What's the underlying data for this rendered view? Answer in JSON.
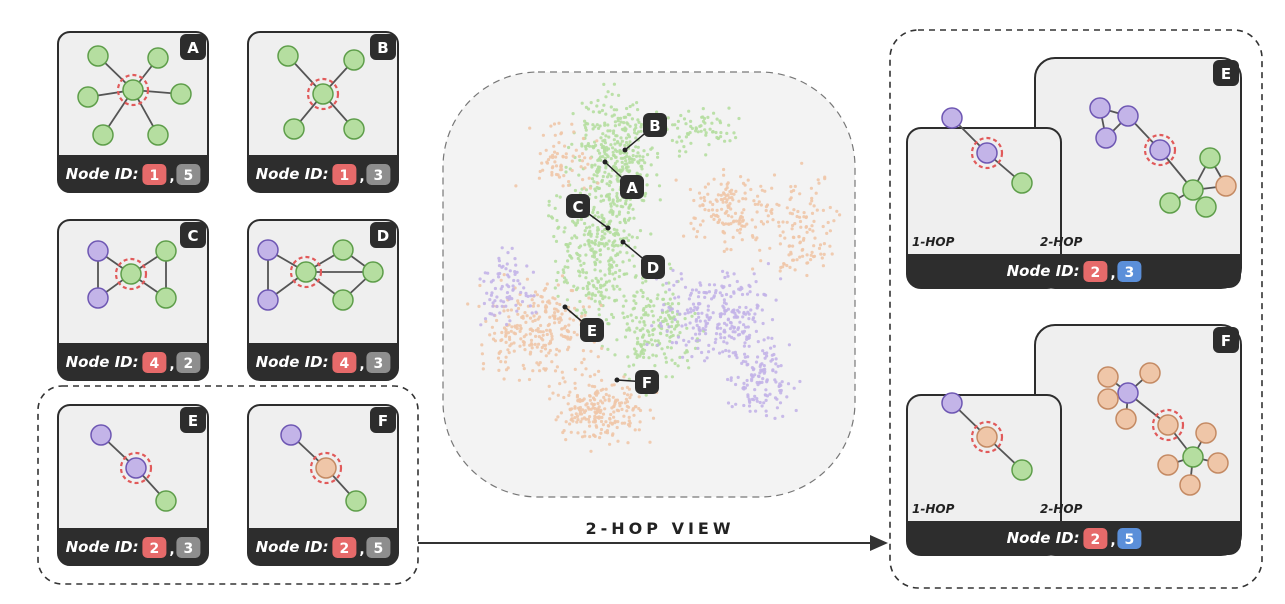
{
  "caption_prefix": "Node ID:",
  "colors": {
    "green": "#b5dea0",
    "green_stroke": "#5e9e4a",
    "purple": "#c3b4e8",
    "purple_stroke": "#6e57b3",
    "tan": "#efc6a8",
    "tan_stroke": "#c48a63",
    "focus_ring": "#e15a5a",
    "badge_red": "#e66a6a",
    "badge_gray": "#8e8e8e",
    "badge_blue": "#5b8fd9",
    "dark": "#2d2d2d",
    "panel": "#efefef"
  },
  "left_panels": [
    {
      "letter": "A",
      "id1": "1",
      "id2": "5",
      "id2_color": "gray"
    },
    {
      "letter": "B",
      "id1": "1",
      "id2": "3",
      "id2_color": "gray"
    },
    {
      "letter": "C",
      "id1": "4",
      "id2": "2",
      "id2_color": "gray"
    },
    {
      "letter": "D",
      "id1": "4",
      "id2": "3",
      "id2_color": "gray"
    },
    {
      "letter": "E",
      "id1": "2",
      "id2": "3",
      "id2_color": "gray"
    },
    {
      "letter": "F",
      "id1": "2",
      "id2": "5",
      "id2_color": "gray"
    }
  ],
  "map_labels": [
    "B",
    "A",
    "C",
    "D",
    "E",
    "F"
  ],
  "arrow_label": "2-HOP VIEW",
  "right_panels": [
    {
      "letter": "E",
      "hop1": "1-HOP",
      "hop2": "2-HOP",
      "id1": "2",
      "id2": "3",
      "id2_color": "blue"
    },
    {
      "letter": "F",
      "hop1": "1-HOP",
      "hop2": "2-HOP",
      "id1": "2",
      "id2": "5",
      "id2_color": "blue"
    }
  ]
}
